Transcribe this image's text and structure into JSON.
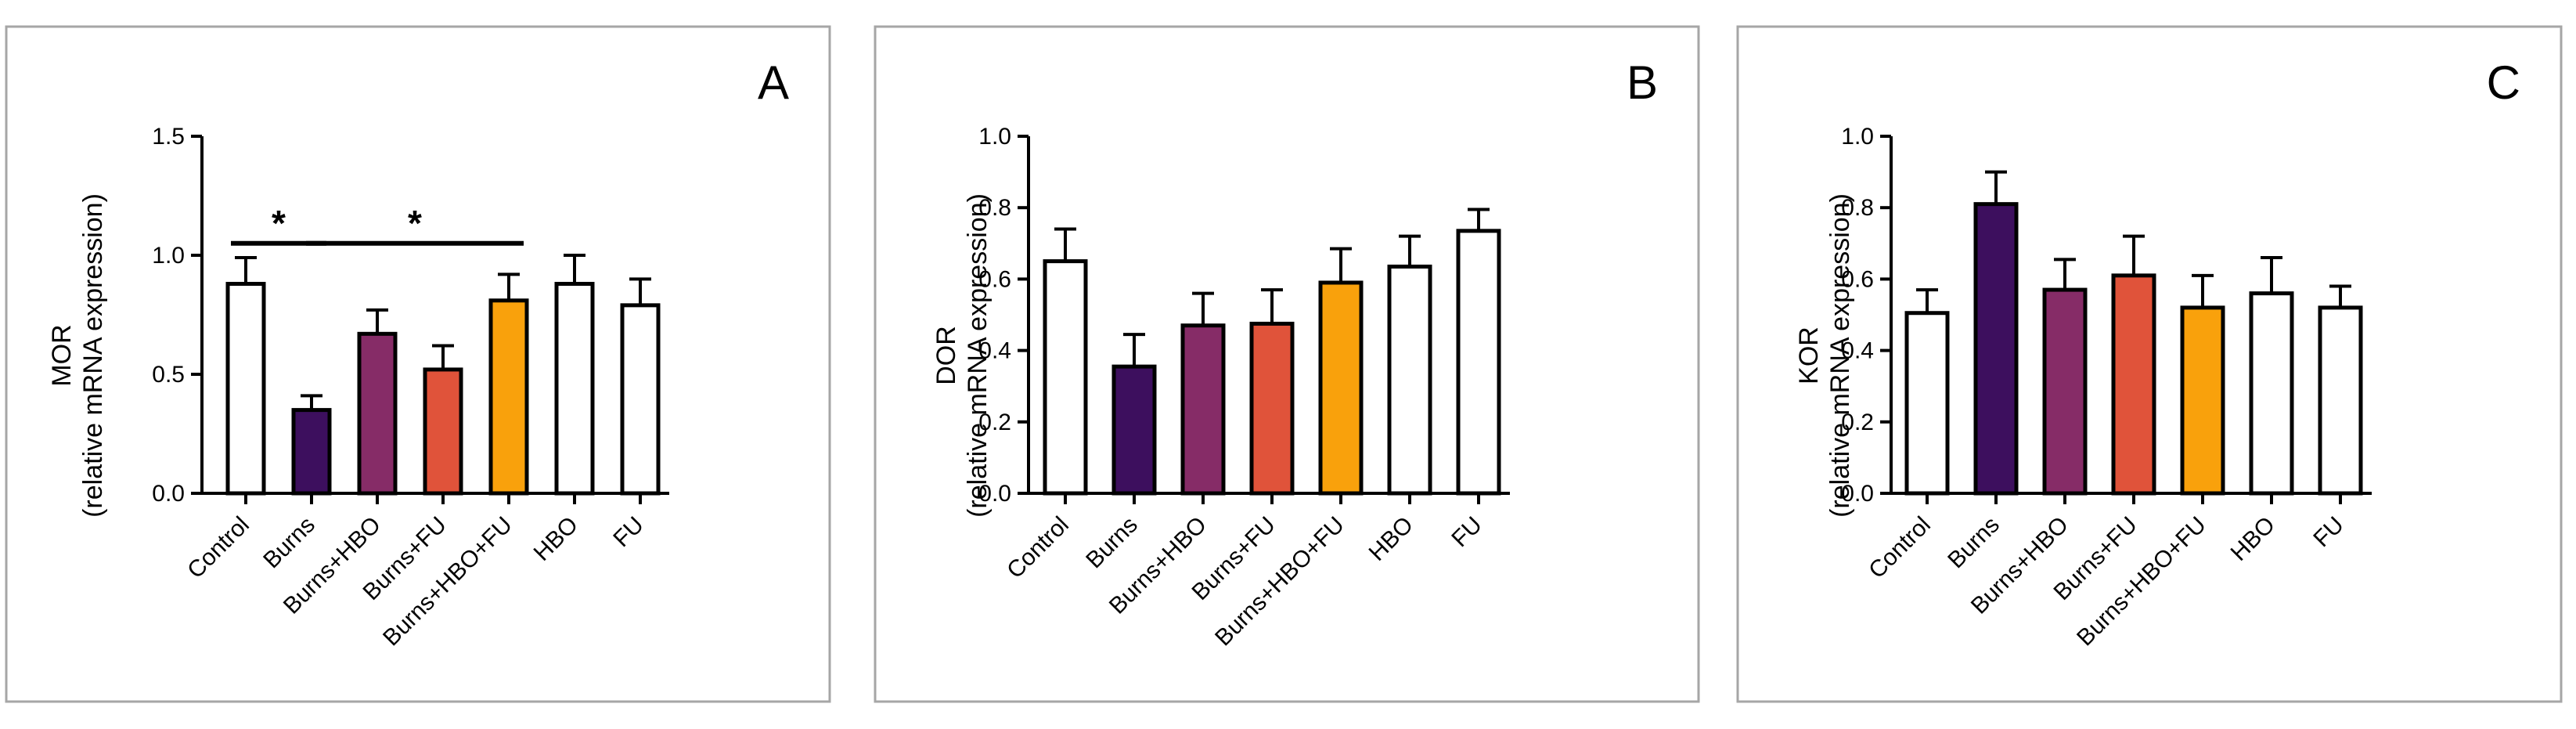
{
  "chart_data": [
    {
      "type": "bar",
      "panel_letter": "A",
      "ylabel_line1": "MOR",
      "ylabel_line2": "(relative mRNA expression)",
      "categories": [
        "Control",
        "Burns",
        "Burns+HBO",
        "Burns+FU",
        "Burns+HBO+FU",
        "HBO",
        "FU"
      ],
      "values": [
        0.88,
        0.35,
        0.67,
        0.52,
        0.81,
        0.88,
        0.79
      ],
      "errors": [
        0.11,
        0.06,
        0.1,
        0.1,
        0.11,
        0.12,
        0.11
      ],
      "ylim": [
        0,
        1.5
      ],
      "yticks": [
        0,
        0.5,
        1.0,
        1.5
      ],
      "ytick_labels": [
        "0.0",
        "0.5",
        "1.0",
        "1.5"
      ],
      "significance": [
        {
          "from": 0,
          "to": 1,
          "label": "*"
        },
        {
          "from": 1,
          "to": 4,
          "label": "*"
        }
      ]
    },
    {
      "type": "bar",
      "panel_letter": "B",
      "ylabel_line1": "DOR",
      "ylabel_line2": "(relative mRNA expression)",
      "categories": [
        "Control",
        "Burns",
        "Burns+HBO",
        "Burns+FU",
        "Burns+HBO+FU",
        "HBO",
        "FU"
      ],
      "values": [
        0.65,
        0.355,
        0.47,
        0.475,
        0.59,
        0.635,
        0.735
      ],
      "errors": [
        0.09,
        0.09,
        0.09,
        0.095,
        0.095,
        0.085,
        0.06
      ],
      "ylim": [
        0,
        1.0
      ],
      "yticks": [
        0,
        0.2,
        0.4,
        0.6,
        0.8,
        1.0
      ],
      "ytick_labels": [
        "0.0",
        "0.2",
        "0.4",
        "0.6",
        "0.8",
        "1.0"
      ],
      "significance": []
    },
    {
      "type": "bar",
      "panel_letter": "C",
      "ylabel_line1": "KOR",
      "ylabel_line2": "(relative mRNA expression)",
      "categories": [
        "Control",
        "Burns",
        "Burns+HBO",
        "Burns+FU",
        "Burns+HBO+FU",
        "HBO",
        "FU"
      ],
      "values": [
        0.505,
        0.81,
        0.57,
        0.61,
        0.52,
        0.56,
        0.52
      ],
      "errors": [
        0.065,
        0.09,
        0.085,
        0.11,
        0.09,
        0.1,
        0.06
      ],
      "ylim": [
        0,
        1.0
      ],
      "yticks": [
        0,
        0.2,
        0.4,
        0.6,
        0.8,
        1.0
      ],
      "ytick_labels": [
        "0.0",
        "0.2",
        "0.4",
        "0.6",
        "0.8",
        "1.0"
      ],
      "significance": []
    }
  ],
  "colors": {
    "Control": "#ffffff",
    "Burns": "#3d0f5e",
    "Burns+HBO": "#862c67",
    "Burns+FU": "#e0533a",
    "Burns+HBO+FU": "#f9a10c",
    "HBO": "#ffffff",
    "FU": "#ffffff"
  }
}
